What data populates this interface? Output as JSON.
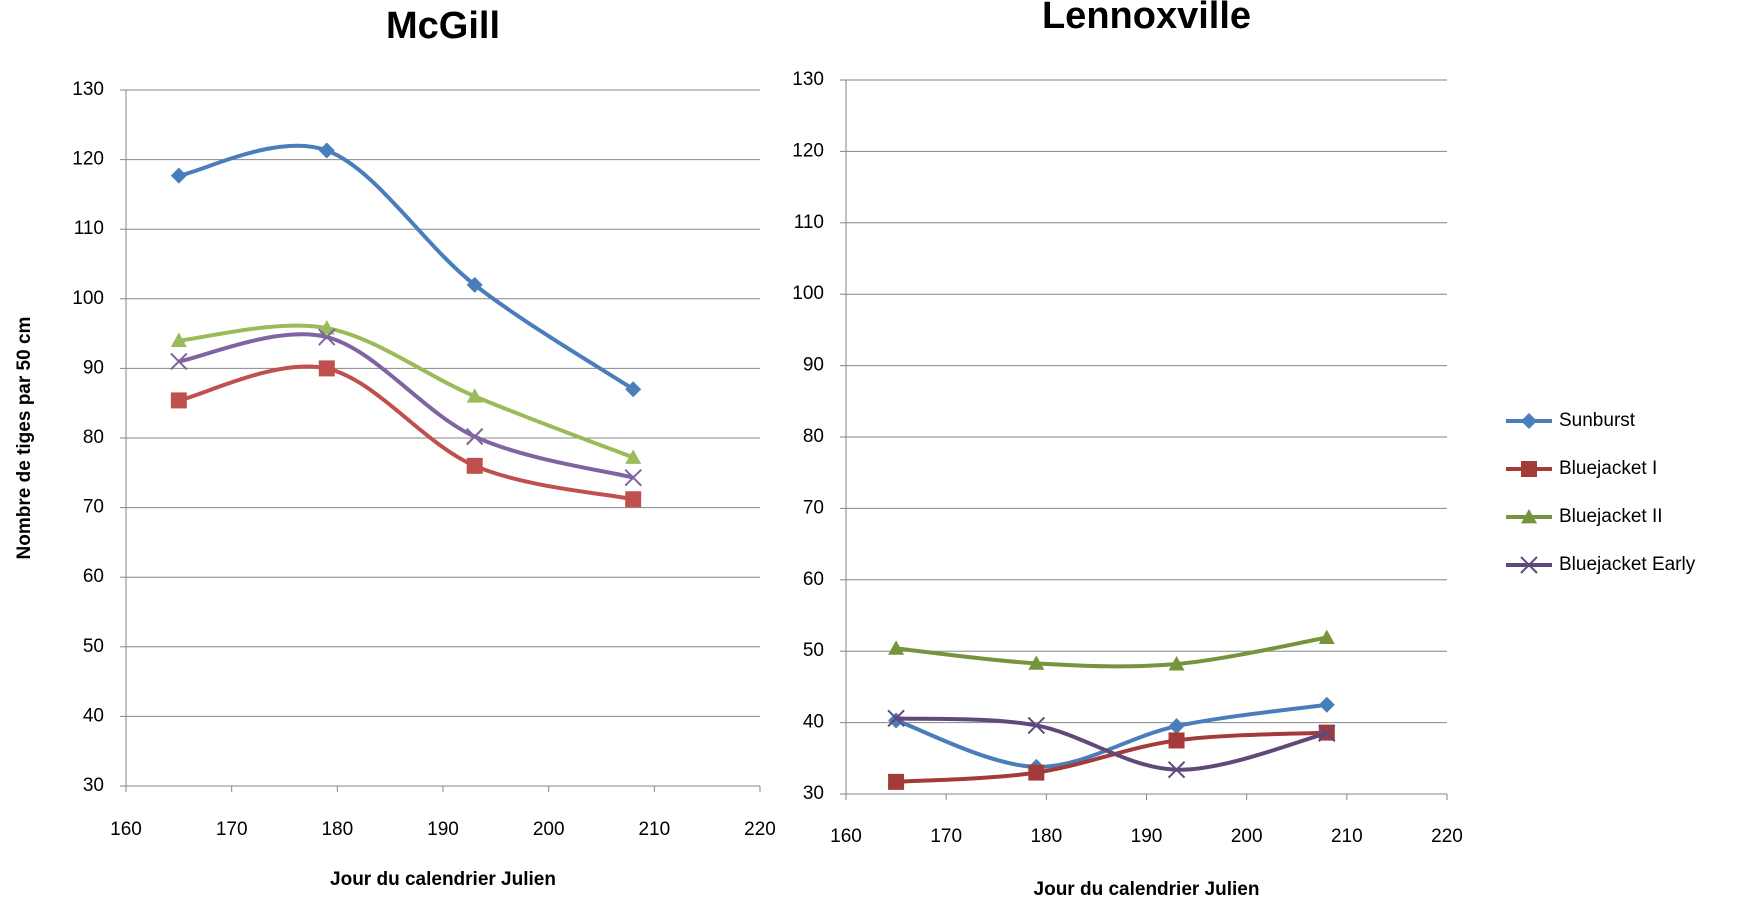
{
  "chart_data": [
    {
      "type": "line",
      "title": "McGill",
      "x_label": "Jour du calendrier Julien",
      "y_label": "Nombre de tiges par 50 cm",
      "x": [
        165,
        179,
        193,
        208
      ],
      "smooth": true,
      "grid": true,
      "xlim": [
        160,
        220
      ],
      "xticks": [
        160,
        170,
        180,
        190,
        200,
        210,
        220
      ],
      "ylim": [
        30,
        130
      ],
      "yticks": [
        30,
        40,
        50,
        60,
        70,
        80,
        90,
        100,
        110,
        120,
        130
      ],
      "series": [
        {
          "name": "Sunburst",
          "color": "#4a7ebb",
          "marker": "diamond",
          "values": [
            117.7,
            121.3,
            102,
            87
          ]
        },
        {
          "name": "Bluejacket I",
          "color": "#c0504d",
          "marker": "square",
          "values": [
            85.4,
            90,
            76,
            71.2
          ]
        },
        {
          "name": "Bluejacket II",
          "color": "#9bbb59",
          "marker": "triangle",
          "values": [
            94,
            95.8,
            86,
            77.2
          ]
        },
        {
          "name": "Bluejacket Early",
          "color": "#8064a2",
          "marker": "x",
          "values": [
            91,
            94.5,
            80.2,
            74.3
          ]
        }
      ]
    },
    {
      "type": "line",
      "title": "Lennoxville",
      "x_label": "Jour du calendrier Julien",
      "x": [
        165,
        179,
        193,
        208
      ],
      "smooth": true,
      "grid": true,
      "legend": "right",
      "xlim": [
        160,
        220
      ],
      "xticks": [
        160,
        170,
        180,
        190,
        200,
        210,
        220
      ],
      "ylim": [
        30,
        130
      ],
      "yticks": [
        30,
        40,
        50,
        60,
        70,
        80,
        90,
        100,
        110,
        120,
        130
      ],
      "series": [
        {
          "name": "Sunburst",
          "color": "#4a7ebb",
          "marker": "diamond",
          "values": [
            40.3,
            33.8,
            39.5,
            42.5
          ]
        },
        {
          "name": "Bluejacket I",
          "color": "#a33b38",
          "marker": "square",
          "values": [
            31.7,
            33,
            37.5,
            38.6
          ]
        },
        {
          "name": "Bluejacket II",
          "color": "#77933c",
          "marker": "triangle",
          "values": [
            50.4,
            48.3,
            48.2,
            51.9
          ]
        },
        {
          "name": "Bluejacket Early",
          "color": "#5f497a",
          "marker": "x",
          "values": [
            40.6,
            39.6,
            33.4,
            38.5
          ]
        }
      ]
    }
  ]
}
